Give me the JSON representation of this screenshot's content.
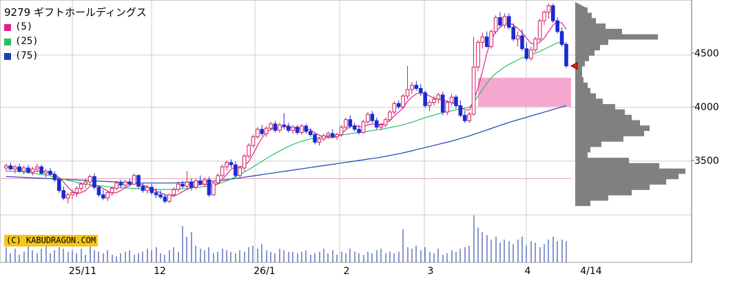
{
  "chart_data": {
    "type": "candlestick",
    "title": "9279 ギフトホールディングス",
    "legend": [
      {
        "label": "(5)",
        "color": "#e0228a"
      },
      {
        "label": "(25)",
        "color": "#29c060"
      },
      {
        "label": "(75)",
        "color": "#1a3fb5"
      }
    ],
    "copyright": "(C) KABUDRAGON.COM",
    "y_ticks": [
      3500,
      4000,
      4500
    ],
    "ylim": [
      3000,
      5000
    ],
    "x_tick_labels": [
      "25/11",
      "12",
      "26/1",
      "2",
      "3",
      "4",
      "4/14"
    ],
    "grid": true,
    "last_price": 4380,
    "highlight_zone": {
      "low": 4000,
      "high": 4270
    },
    "reference_line": 3330,
    "candles_ohlc": [
      [
        3430,
        3470,
        3400,
        3450
      ],
      [
        3450,
        3480,
        3410,
        3420
      ],
      [
        3420,
        3460,
        3380,
        3440
      ],
      [
        3440,
        3470,
        3390,
        3400
      ],
      [
        3400,
        3450,
        3370,
        3430
      ],
      [
        3430,
        3460,
        3380,
        3390
      ],
      [
        3390,
        3440,
        3360,
        3420
      ],
      [
        3420,
        3470,
        3400,
        3440
      ],
      [
        3440,
        3460,
        3370,
        3380
      ],
      [
        3380,
        3420,
        3340,
        3400
      ],
      [
        3400,
        3430,
        3360,
        3370
      ],
      [
        3370,
        3400,
        3300,
        3320
      ],
      [
        3320,
        3340,
        3200,
        3220
      ],
      [
        3220,
        3260,
        3130,
        3150
      ],
      [
        3150,
        3200,
        3100,
        3180
      ],
      [
        3180,
        3230,
        3140,
        3200
      ],
      [
        3200,
        3260,
        3160,
        3240
      ],
      [
        3240,
        3300,
        3210,
        3280
      ],
      [
        3280,
        3330,
        3240,
        3300
      ],
      [
        3300,
        3370,
        3270,
        3350
      ],
      [
        3350,
        3380,
        3230,
        3250
      ],
      [
        3250,
        3270,
        3160,
        3180
      ],
      [
        3180,
        3230,
        3130,
        3150
      ],
      [
        3150,
        3220,
        3120,
        3200
      ],
      [
        3200,
        3260,
        3170,
        3240
      ],
      [
        3240,
        3310,
        3220,
        3290
      ],
      [
        3290,
        3320,
        3240,
        3270
      ],
      [
        3270,
        3320,
        3250,
        3300
      ],
      [
        3300,
        3330,
        3260,
        3280
      ],
      [
        3280,
        3380,
        3270,
        3360
      ],
      [
        3360,
        3370,
        3240,
        3260
      ],
      [
        3260,
        3290,
        3200,
        3220
      ],
      [
        3220,
        3270,
        3190,
        3250
      ],
      [
        3250,
        3280,
        3180,
        3200
      ],
      [
        3200,
        3240,
        3150,
        3180
      ],
      [
        3180,
        3220,
        3140,
        3160
      ],
      [
        3160,
        3190,
        3100,
        3120
      ],
      [
        3120,
        3190,
        3100,
        3180
      ],
      [
        3180,
        3250,
        3160,
        3230
      ],
      [
        3230,
        3300,
        3210,
        3280
      ],
      [
        3280,
        3310,
        3240,
        3260
      ],
      [
        3260,
        3400,
        3240,
        3300
      ],
      [
        3300,
        3330,
        3220,
        3250
      ],
      [
        3250,
        3330,
        3230,
        3310
      ],
      [
        3310,
        3360,
        3270,
        3280
      ],
      [
        3280,
        3340,
        3250,
        3320
      ],
      [
        3320,
        3350,
        3160,
        3180
      ],
      [
        3180,
        3310,
        3170,
        3290
      ],
      [
        3290,
        3380,
        3280,
        3360
      ],
      [
        3360,
        3460,
        3340,
        3440
      ],
      [
        3440,
        3500,
        3410,
        3480
      ],
      [
        3480,
        3510,
        3430,
        3460
      ],
      [
        3460,
        3490,
        3340,
        3360
      ],
      [
        3360,
        3450,
        3340,
        3430
      ],
      [
        3430,
        3560,
        3400,
        3540
      ],
      [
        3540,
        3660,
        3520,
        3640
      ],
      [
        3640,
        3740,
        3620,
        3720
      ],
      [
        3720,
        3810,
        3700,
        3790
      ],
      [
        3790,
        3830,
        3730,
        3750
      ],
      [
        3750,
        3820,
        3720,
        3800
      ],
      [
        3800,
        3860,
        3780,
        3840
      ],
      [
        3840,
        3870,
        3760,
        3780
      ],
      [
        3780,
        3850,
        3760,
        3830
      ],
      [
        3830,
        3940,
        3790,
        3820
      ],
      [
        3820,
        3850,
        3760,
        3780
      ],
      [
        3780,
        3830,
        3750,
        3810
      ],
      [
        3810,
        3830,
        3740,
        3760
      ],
      [
        3760,
        3840,
        3740,
        3820
      ],
      [
        3820,
        3840,
        3750,
        3770
      ],
      [
        3770,
        3800,
        3720,
        3740
      ],
      [
        3740,
        3760,
        3650,
        3670
      ],
      [
        3670,
        3720,
        3640,
        3700
      ],
      [
        3700,
        3750,
        3680,
        3730
      ],
      [
        3730,
        3770,
        3700,
        3750
      ],
      [
        3750,
        3790,
        3710,
        3720
      ],
      [
        3720,
        3760,
        3690,
        3740
      ],
      [
        3740,
        3830,
        3720,
        3810
      ],
      [
        3810,
        3900,
        3790,
        3880
      ],
      [
        3880,
        3920,
        3800,
        3820
      ],
      [
        3820,
        3850,
        3770,
        3790
      ],
      [
        3790,
        3830,
        3740,
        3760
      ],
      [
        3760,
        3880,
        3750,
        3860
      ],
      [
        3860,
        3950,
        3840,
        3930
      ],
      [
        3930,
        3960,
        3850,
        3870
      ],
      [
        3870,
        3900,
        3790,
        3810
      ],
      [
        3810,
        3850,
        3780,
        3830
      ],
      [
        3830,
        3900,
        3810,
        3880
      ],
      [
        3880,
        3970,
        3860,
        3950
      ],
      [
        3950,
        4050,
        3930,
        4030
      ],
      [
        4030,
        4060,
        3980,
        4000
      ],
      [
        4000,
        4120,
        3980,
        4100
      ],
      [
        4100,
        4380,
        4070,
        4160
      ],
      [
        4160,
        4230,
        4120,
        4200
      ],
      [
        4200,
        4240,
        4150,
        4170
      ],
      [
        4170,
        4210,
        4100,
        4130
      ],
      [
        4130,
        4150,
        3990,
        4010
      ],
      [
        4010,
        4060,
        3960,
        4040
      ],
      [
        4040,
        4100,
        4010,
        4070
      ],
      [
        4070,
        4130,
        4030,
        4110
      ],
      [
        4110,
        4140,
        3920,
        3950
      ],
      [
        3950,
        4060,
        3920,
        4040
      ],
      [
        4040,
        4120,
        4010,
        4090
      ],
      [
        4090,
        4110,
        3980,
        4010
      ],
      [
        4010,
        4060,
        3900,
        3920
      ],
      [
        3920,
        3960,
        3850,
        3870
      ],
      [
        3870,
        3950,
        3850,
        3930
      ],
      [
        3930,
        4650,
        3920,
        4370
      ],
      [
        4370,
        4620,
        4330,
        4600
      ],
      [
        4600,
        4690,
        4540,
        4650
      ],
      [
        4650,
        4700,
        4550,
        4560
      ],
      [
        4560,
        4720,
        4540,
        4700
      ],
      [
        4700,
        4850,
        4680,
        4830
      ],
      [
        4830,
        4880,
        4740,
        4760
      ],
      [
        4760,
        4870,
        4730,
        4840
      ],
      [
        4840,
        4870,
        4720,
        4740
      ],
      [
        4740,
        4780,
        4610,
        4630
      ],
      [
        4630,
        4700,
        4560,
        4660
      ],
      [
        4660,
        4720,
        4520,
        4540
      ],
      [
        4540,
        4600,
        4430,
        4450
      ],
      [
        4450,
        4560,
        4430,
        4530
      ],
      [
        4530,
        4650,
        4510,
        4630
      ],
      [
        4630,
        4820,
        4610,
        4800
      ],
      [
        4800,
        4900,
        4760,
        4880
      ],
      [
        4880,
        4960,
        4820,
        4940
      ],
      [
        4940,
        4960,
        4780,
        4800
      ],
      [
        4800,
        4830,
        4680,
        4700
      ],
      [
        4700,
        4740,
        4560,
        4580
      ],
      [
        4580,
        4600,
        4360,
        4380
      ]
    ],
    "ma5": [
      3440,
      3430,
      3425,
      3420,
      3415,
      3405,
      3400,
      3400,
      3400,
      3395,
      3385,
      3370,
      3340,
      3300,
      3250,
      3210,
      3190,
      3200,
      3220,
      3260,
      3270,
      3260,
      3240,
      3215,
      3195,
      3200,
      3220,
      3245,
      3270,
      3285,
      3280,
      3270,
      3255,
      3235,
      3215,
      3200,
      3180,
      3170,
      3170,
      3185,
      3210,
      3230,
      3250,
      3265,
      3275,
      3280,
      3270,
      3265,
      3280,
      3325,
      3370,
      3420,
      3440,
      3440,
      3450,
      3490,
      3560,
      3640,
      3710,
      3760,
      3790,
      3800,
      3805,
      3815,
      3810,
      3805,
      3800,
      3795,
      3790,
      3785,
      3755,
      3735,
      3720,
      3715,
      3710,
      3720,
      3745,
      3785,
      3815,
      3825,
      3815,
      3815,
      3830,
      3840,
      3840,
      3835,
      3845,
      3875,
      3915,
      3950,
      3990,
      4050,
      4090,
      4120,
      4130,
      4120,
      4100,
      4080,
      4070,
      4060,
      4050,
      4040,
      4020,
      4000,
      3970,
      3970,
      4050,
      4180,
      4330,
      4500,
      4620,
      4700,
      4740,
      4770,
      4780,
      4760,
      4730,
      4690,
      4640,
      4590,
      4580,
      4600,
      4640,
      4700,
      4760,
      4790,
      4780,
      4720
    ],
    "ma25": [
      3400,
      3400,
      3400,
      3395,
      3390,
      3385,
      3380,
      3375,
      3370,
      3365,
      3355,
      3345,
      3335,
      3325,
      3315,
      3305,
      3295,
      3285,
      3280,
      3275,
      3270,
      3265,
      3260,
      3255,
      3250,
      3248,
      3246,
      3244,
      3242,
      3240,
      3238,
      3236,
      3234,
      3232,
      3230,
      3230,
      3230,
      3230,
      3232,
      3234,
      3236,
      3240,
      3244,
      3248,
      3252,
      3258,
      3264,
      3272,
      3282,
      3294,
      3310,
      3328,
      3348,
      3370,
      3392,
      3416,
      3440,
      3466,
      3492,
      3518,
      3542,
      3566,
      3588,
      3610,
      3630,
      3648,
      3664,
      3678,
      3690,
      3700,
      3708,
      3714,
      3720,
      3724,
      3728,
      3732,
      3736,
      3742,
      3748,
      3754,
      3760,
      3766,
      3772,
      3778,
      3784,
      3790,
      3798,
      3806,
      3814,
      3822,
      3832,
      3844,
      3856,
      3870,
      3884,
      3898,
      3910,
      3922,
      3934,
      3944,
      3954,
      3962,
      3970,
      3978,
      3986,
      3996,
      4040,
      4100,
      4160,
      4220,
      4270,
      4310,
      4340,
      4370,
      4395,
      4415,
      4435,
      4455,
      4470,
      4485,
      4500,
      4515,
      4535,
      4555,
      4575,
      4595,
      4600,
      4580
    ],
    "ma75": [
      3350,
      3348,
      3346,
      3344,
      3342,
      3340,
      3338,
      3336,
      3334,
      3332,
      3330,
      3328,
      3326,
      3324,
      3322,
      3320,
      3318,
      3316,
      3314,
      3312,
      3310,
      3308,
      3306,
      3304,
      3302,
      3300,
      3298,
      3296,
      3294,
      3292,
      3290,
      3290,
      3290,
      3290,
      3290,
      3290,
      3290,
      3290,
      3290,
      3292,
      3294,
      3296,
      3298,
      3300,
      3302,
      3304,
      3306,
      3308,
      3312,
      3316,
      3320,
      3326,
      3332,
      3338,
      3344,
      3350,
      3356,
      3362,
      3368,
      3374,
      3380,
      3386,
      3392,
      3398,
      3404,
      3410,
      3416,
      3422,
      3428,
      3434,
      3440,
      3446,
      3452,
      3458,
      3464,
      3470,
      3476,
      3482,
      3488,
      3494,
      3500,
      3506,
      3512,
      3518,
      3524,
      3530,
      3538,
      3546,
      3554,
      3562,
      3570,
      3580,
      3590,
      3600,
      3610,
      3620,
      3630,
      3640,
      3650,
      3660,
      3670,
      3680,
      3692,
      3704,
      3716,
      3728,
      3742,
      3756,
      3770,
      3784,
      3798,
      3812,
      3826,
      3840,
      3854,
      3866,
      3878,
      3890,
      3902,
      3914,
      3926,
      3938,
      3950,
      3962,
      3974,
      3986,
      3998,
      4010
    ],
    "volume": [
      20,
      12,
      18,
      10,
      14,
      22,
      16,
      12,
      18,
      26,
      12,
      16,
      20,
      18,
      14,
      16,
      12,
      18,
      10,
      22,
      16,
      14,
      12,
      16,
      10,
      8,
      12,
      14,
      16,
      10,
      12,
      14,
      18,
      16,
      20,
      12,
      10,
      16,
      20,
      14,
      48,
      34,
      40,
      22,
      18,
      16,
      20,
      12,
      14,
      18,
      16,
      14,
      12,
      16,
      14,
      20,
      22,
      18,
      24,
      16,
      14,
      12,
      18,
      16,
      14,
      14,
      12,
      14,
      16,
      10,
      12,
      14,
      18,
      12,
      16,
      10,
      14,
      12,
      18,
      14,
      12,
      10,
      14,
      12,
      16,
      18,
      12,
      14,
      12,
      14,
      44,
      20,
      18,
      22,
      16,
      20,
      14,
      12,
      18,
      10,
      12,
      16,
      14,
      18,
      20,
      22,
      62,
      46,
      40,
      36,
      30,
      34,
      26,
      30,
      28,
      24,
      30,
      34,
      22,
      28,
      26,
      20,
      24,
      30,
      34,
      28,
      30,
      28
    ],
    "volume_profile": [
      {
        "price": 4950,
        "v": 15
      },
      {
        "price": 4900,
        "v": 18
      },
      {
        "price": 4850,
        "v": 24
      },
      {
        "price": 4800,
        "v": 30
      },
      {
        "price": 4750,
        "v": 44
      },
      {
        "price": 4700,
        "v": 68
      },
      {
        "price": 4650,
        "v": 120
      },
      {
        "price": 4600,
        "v": 48
      },
      {
        "price": 4550,
        "v": 36
      },
      {
        "price": 4500,
        "v": 28
      },
      {
        "price": 4450,
        "v": 20
      },
      {
        "price": 4400,
        "v": 14
      },
      {
        "price": 4350,
        "v": 10
      },
      {
        "price": 4300,
        "v": 10
      },
      {
        "price": 4250,
        "v": 12
      },
      {
        "price": 4200,
        "v": 18
      },
      {
        "price": 4150,
        "v": 22
      },
      {
        "price": 4100,
        "v": 30
      },
      {
        "price": 4050,
        "v": 40
      },
      {
        "price": 4000,
        "v": 58
      },
      {
        "price": 3950,
        "v": 72
      },
      {
        "price": 3900,
        "v": 82
      },
      {
        "price": 3850,
        "v": 94
      },
      {
        "price": 3800,
        "v": 108
      },
      {
        "price": 3750,
        "v": 100
      },
      {
        "price": 3700,
        "v": 70
      },
      {
        "price": 3650,
        "v": 38
      },
      {
        "price": 3600,
        "v": 22
      },
      {
        "price": 3550,
        "v": 18
      },
      {
        "price": 3500,
        "v": 78
      },
      {
        "price": 3450,
        "v": 122
      },
      {
        "price": 3400,
        "v": 160
      },
      {
        "price": 3350,
        "v": 150
      },
      {
        "price": 3300,
        "v": 132
      },
      {
        "price": 3250,
        "v": 108
      },
      {
        "price": 3200,
        "v": 82
      },
      {
        "price": 3150,
        "v": 48
      },
      {
        "price": 3100,
        "v": 22
      }
    ]
  }
}
